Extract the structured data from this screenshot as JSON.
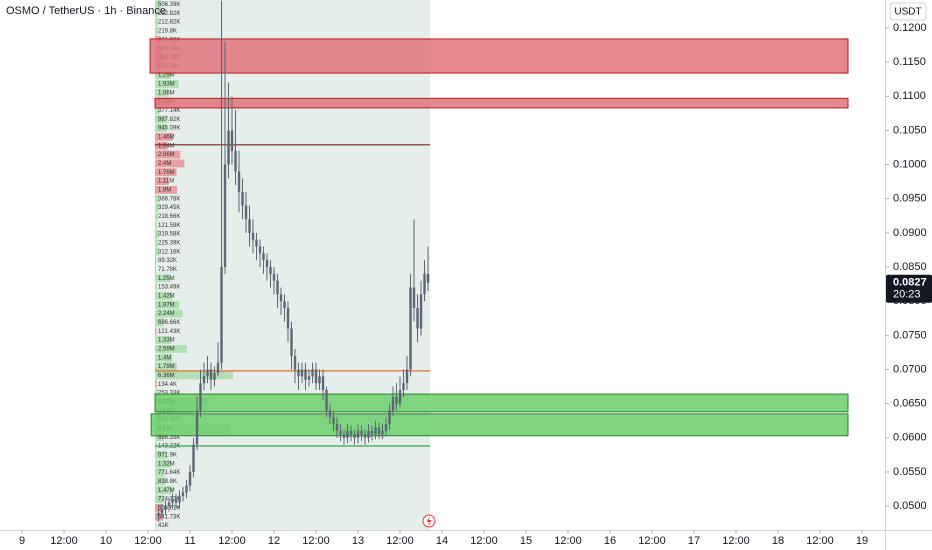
{
  "header": {
    "title": "OSMO / TetherUS · 1h · Binance",
    "currency": "USDT"
  },
  "chart_data": {
    "type": "candlestick",
    "color": "#5d6673",
    "x": [
      39,
      40,
      41,
      42,
      43,
      44,
      45,
      46,
      47,
      48,
      49,
      50,
      51,
      52,
      53,
      54,
      55,
      56,
      57,
      58,
      59,
      60,
      61,
      62,
      63,
      64,
      65,
      66,
      67,
      68,
      69,
      70,
      71,
      72,
      73,
      74,
      75,
      76,
      77,
      78,
      79,
      80,
      81,
      82,
      83,
      84,
      85,
      86,
      87,
      88,
      89,
      90,
      91,
      92,
      93,
      94,
      95,
      96,
      97,
      98,
      99,
      100,
      101,
      102,
      103,
      104,
      105,
      106,
      107,
      108,
      109,
      110,
      111,
      112,
      113,
      114,
      115,
      116
    ],
    "open": [
      0.0485,
      0.049,
      0.0495,
      0.05,
      0.0505,
      0.051,
      0.0505,
      0.0515,
      0.052,
      0.053,
      0.055,
      0.059,
      0.064,
      0.068,
      0.069,
      0.07,
      0.0685,
      0.0695,
      0.071,
      0.085,
      0.1,
      0.105,
      0.102,
      0.099,
      0.096,
      0.094,
      0.092,
      0.09,
      0.089,
      0.088,
      0.087,
      0.086,
      0.085,
      0.084,
      0.083,
      0.081,
      0.08,
      0.079,
      0.076,
      0.072,
      0.07,
      0.069,
      0.07,
      0.0685,
      0.069,
      0.07,
      0.068,
      0.069,
      0.067,
      0.064,
      0.063,
      0.062,
      0.061,
      0.0605,
      0.06,
      0.061,
      0.0605,
      0.06,
      0.061,
      0.0605,
      0.06,
      0.061,
      0.0605,
      0.0615,
      0.0605,
      0.061,
      0.062,
      0.064,
      0.066,
      0.065,
      0.067,
      0.068,
      0.07,
      0.082,
      0.079,
      0.076,
      0.081,
      0.084
    ],
    "high": [
      0.0498,
      0.0503,
      0.0508,
      0.0513,
      0.0518,
      0.0518,
      0.0523,
      0.0528,
      0.0538,
      0.056,
      0.06,
      0.066,
      0.07,
      0.071,
      0.072,
      0.071,
      0.0705,
      0.074,
      0.124,
      0.118,
      0.112,
      0.11,
      0.108,
      0.102,
      0.098,
      0.096,
      0.094,
      0.092,
      0.09,
      0.089,
      0.088,
      0.087,
      0.086,
      0.085,
      0.084,
      0.082,
      0.081,
      0.08,
      0.077,
      0.073,
      0.071,
      0.071,
      0.071,
      0.07,
      0.071,
      0.071,
      0.07,
      0.07,
      0.0675,
      0.065,
      0.064,
      0.063,
      0.062,
      0.0612,
      0.062,
      0.0618,
      0.0612,
      0.062,
      0.0618,
      0.0612,
      0.062,
      0.0618,
      0.0625,
      0.0622,
      0.062,
      0.063,
      0.065,
      0.0675,
      0.068,
      0.069,
      0.07,
      0.072,
      0.084,
      0.092,
      0.081,
      0.083,
      0.086,
      0.088
    ],
    "low": [
      0.0477,
      0.0482,
      0.0487,
      0.0492,
      0.0497,
      0.0497,
      0.0497,
      0.0507,
      0.0512,
      0.0522,
      0.0542,
      0.0582,
      0.063,
      0.067,
      0.068,
      0.067,
      0.0675,
      0.069,
      0.07,
      0.084,
      0.098,
      0.1,
      0.097,
      0.093,
      0.092,
      0.09,
      0.088,
      0.087,
      0.086,
      0.085,
      0.084,
      0.083,
      0.082,
      0.081,
      0.079,
      0.078,
      0.077,
      0.074,
      0.07,
      0.068,
      0.067,
      0.068,
      0.067,
      0.0675,
      0.068,
      0.067,
      0.067,
      0.0655,
      0.063,
      0.062,
      0.061,
      0.06,
      0.0595,
      0.059,
      0.0592,
      0.0595,
      0.059,
      0.0592,
      0.0595,
      0.059,
      0.0593,
      0.0596,
      0.0598,
      0.0598,
      0.0598,
      0.0602,
      0.0612,
      0.0632,
      0.064,
      0.0645,
      0.066,
      0.067,
      0.069,
      0.077,
      0.074,
      0.075,
      0.08,
      0.0815
    ],
    "close": [
      0.049,
      0.0495,
      0.05,
      0.0505,
      0.051,
      0.0505,
      0.0515,
      0.052,
      0.053,
      0.055,
      0.059,
      0.064,
      0.068,
      0.069,
      0.07,
      0.0685,
      0.0695,
      0.071,
      0.085,
      0.1,
      0.105,
      0.102,
      0.099,
      0.096,
      0.094,
      0.092,
      0.09,
      0.089,
      0.088,
      0.087,
      0.086,
      0.085,
      0.084,
      0.083,
      0.081,
      0.08,
      0.079,
      0.076,
      0.072,
      0.07,
      0.069,
      0.07,
      0.0685,
      0.069,
      0.07,
      0.068,
      0.069,
      0.067,
      0.064,
      0.063,
      0.062,
      0.061,
      0.0605,
      0.06,
      0.061,
      0.0605,
      0.06,
      0.061,
      0.0605,
      0.06,
      0.061,
      0.0605,
      0.0615,
      0.0605,
      0.061,
      0.062,
      0.064,
      0.066,
      0.065,
      0.067,
      0.068,
      0.07,
      0.082,
      0.079,
      0.076,
      0.081,
      0.084,
      0.0827
    ],
    "xlim": [
      -6.29,
      246.57
    ],
    "ylim": [
      0.0465,
      0.1241
    ],
    "xticks": [
      {
        "value": 0,
        "label": "9"
      },
      {
        "value": 12,
        "label": "12:00"
      },
      {
        "value": 24,
        "label": "10"
      },
      {
        "value": 36,
        "label": "12:00"
      },
      {
        "value": 48,
        "label": "11"
      },
      {
        "value": 60,
        "label": "12:00"
      },
      {
        "value": 72,
        "label": "12"
      },
      {
        "value": 84,
        "label": "12:00"
      },
      {
        "value": 96,
        "label": "13"
      },
      {
        "value": 108,
        "label": "12:00"
      },
      {
        "value": 120,
        "label": "14"
      },
      {
        "value": 132,
        "label": "12:00"
      },
      {
        "value": 144,
        "label": "15"
      },
      {
        "value": 156,
        "label": "12:00"
      },
      {
        "value": 168,
        "label": "16"
      },
      {
        "value": 180,
        "label": "12:00"
      },
      {
        "value": 192,
        "label": "17"
      },
      {
        "value": 204,
        "label": "12:00"
      },
      {
        "value": 216,
        "label": "18"
      },
      {
        "value": 228,
        "label": "12:00"
      },
      {
        "value": 240,
        "label": "19"
      }
    ],
    "yticks": [
      {
        "value": 0.05,
        "label": "0.0500"
      },
      {
        "value": 0.055,
        "label": "0.0550"
      },
      {
        "value": 0.06,
        "label": "0.0600"
      },
      {
        "value": 0.065,
        "label": "0.0650"
      },
      {
        "value": 0.07,
        "label": "0.0700"
      },
      {
        "value": 0.075,
        "label": "0.0750"
      },
      {
        "value": 0.08,
        "label": "0.0800"
      },
      {
        "value": 0.085,
        "label": "0.0850"
      },
      {
        "value": 0.09,
        "label": "0.0900"
      },
      {
        "value": 0.095,
        "label": "0.0950"
      },
      {
        "value": 0.1,
        "label": "0.1000"
      },
      {
        "value": 0.105,
        "label": "0.1050"
      },
      {
        "value": 0.11,
        "label": "0.1100"
      },
      {
        "value": 0.115,
        "label": "0.1150"
      },
      {
        "value": 0.12,
        "label": "0.1200"
      }
    ],
    "last_price": {
      "value": 0.0827,
      "label": "0.0827"
    },
    "countdown": "20:23",
    "zones": [
      {
        "ylim": [
          0.1134,
          0.1184
        ],
        "xlim": [
          36.6,
          236.0
        ],
        "color": "#e0737c",
        "border": "#b71c1c"
      },
      {
        "ylim": [
          0.1083,
          0.1097
        ],
        "xlim": [
          38.0,
          236.0
        ],
        "color": "#e0737c",
        "border": "#b71c1c"
      },
      {
        "ylim": [
          0.0638,
          0.0664
        ],
        "xlim": [
          38.0,
          236.0
        ],
        "color": "#6ccf6c",
        "border": "#2e7d32"
      },
      {
        "ylim": [
          0.0603,
          0.0635
        ],
        "xlim": [
          36.9,
          236.0
        ],
        "color": "#6ccf6c",
        "border": "#2e7d32"
      }
    ],
    "levels": [
      {
        "value": 0.1029,
        "xlim": [
          38.0,
          116.6
        ],
        "color": "#7a1f1f"
      },
      {
        "value": 0.0698,
        "xlim": [
          38.0,
          116.6
        ],
        "color": "#e8702a"
      },
      {
        "value": 0.0588,
        "xlim": [
          38.0,
          116.6
        ],
        "color": "#3fa34d"
      }
    ],
    "volume_profile": {
      "values": [
        506390,
        212820,
        212820,
        219800,
        421920,
        506390,
        756750,
        450360,
        1290000,
        1930000,
        1060000,
        1260000,
        377140,
        987820,
        945090,
        1460000,
        1040000,
        2060000,
        2400000,
        1760000,
        1110000,
        1800000,
        366780,
        329450,
        218660,
        121590,
        319580,
        225390,
        312160,
        89320,
        71780,
        1250000,
        153490,
        1420000,
        1970000,
        2240000,
        696660,
        121430,
        1330000,
        2590000,
        1400000,
        1790000,
        6360000,
        134400,
        253330,
        4350000,
        3150000,
        506560,
        6100000,
        696350,
        143220,
        971900,
        1320000,
        771640,
        838800,
        1470000,
        724330,
        565610,
        641730,
        41000
      ],
      "value_labels": [
        "506.39K",
        "212.82K",
        "212.82K",
        "219.8K",
        "421.92K",
        "506.39K",
        "756.75K",
        "450.36K",
        "1.29M",
        "1.93M",
        "1.06M",
        "1.26M",
        "377.14K",
        "987.82K",
        "945.09K",
        "1.46M",
        "1.04M",
        "2.06M",
        "2.4M",
        "1.76M",
        "1.11M",
        "1.8M",
        "366.78K",
        "329.45K",
        "218.66K",
        "121.59K",
        "319.58K",
        "225.39K",
        "312.16K",
        "89.32K",
        "71.78K",
        "1.25M",
        "153.49K",
        "1.42M",
        "1.97M",
        "2.24M",
        "696.66K",
        "121.43K",
        "1.33M",
        "2.59M",
        "1.4M",
        "1.79M",
        "6.36M",
        "134.4K",
        "253.33K",
        "4.35M",
        "3.15M",
        "506.56K",
        "6.1M",
        "696.35K",
        "143.22K",
        "971.9K",
        "1.32M",
        "771.64K",
        "838.8K",
        "1.47M",
        "724.33K",
        "565.61K",
        "641.73K",
        "41K"
      ],
      "colors": [
        "#9fd89f",
        "#9fd89f",
        "#9fd89f",
        "#9fd89f",
        "#e8868d",
        "#e8868d",
        "#e8868d",
        "#e8868d",
        "#9fd89f",
        "#9fd89f",
        "#9fd89f",
        "#e8868d",
        "#9fd89f",
        "#9fd89f",
        "#9fd89f",
        "#e8868d",
        "#e8868d",
        "#e8868d",
        "#e8868d",
        "#e8868d",
        "#e8868d",
        "#e8868d",
        "#9fd89f",
        "#9fd89f",
        "#9fd89f",
        "#9fd89f",
        "#9fd89f",
        "#9fd89f",
        "#9fd89f",
        "#e8868d",
        "#e8868d",
        "#9fd89f",
        "#9fd89f",
        "#9fd89f",
        "#9fd89f",
        "#9fd89f",
        "#9fd89f",
        "#e8868d",
        "#9fd89f",
        "#9fd89f",
        "#9fd89f",
        "#9fd89f",
        "#9fd89f",
        "#e8868d",
        "#9fd89f",
        "#9fd89f",
        "#9fd89f",
        "#9fd89f",
        "#9fd89f",
        "#9fd89f",
        "#9fd89f",
        "#9fd89f",
        "#9fd89f",
        "#9fd89f",
        "#9fd89f",
        "#9fd89f",
        "#9fd89f",
        "#e8868d",
        "#e8868d",
        "#9fd89f"
      ]
    }
  }
}
